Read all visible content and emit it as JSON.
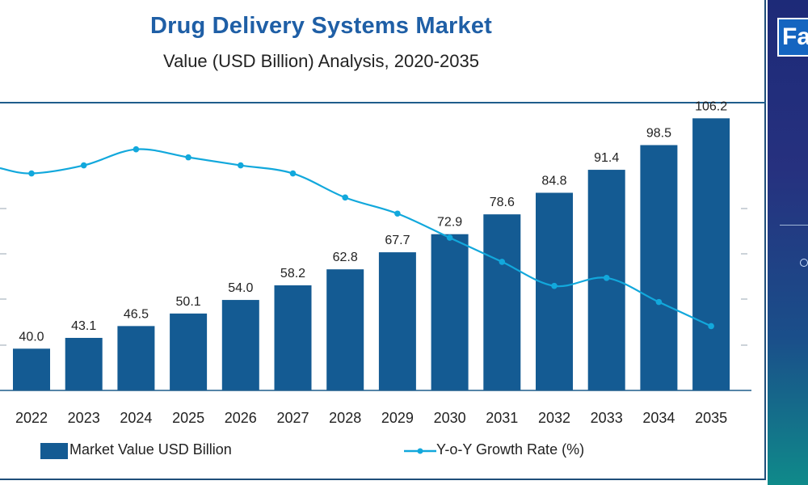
{
  "colors": {
    "bar": "#145b93",
    "line": "#12a8dc",
    "axis": "#1f5d8c",
    "gridtick": "#9aa7b3"
  },
  "chart_data": {
    "type": "bar",
    "title": "Drug Delivery Systems Market",
    "subtitle": "Value (USD Billion) Analysis, 2020-2035",
    "categories": [
      "2022",
      "2023",
      "2024",
      "2025",
      "2026",
      "2027",
      "2028",
      "2029",
      "2030",
      "2031",
      "2032",
      "2033",
      "2034",
      "2035"
    ],
    "series": [
      {
        "name": "Market Value USD Billion",
        "type": "bar",
        "values": [
          40.0,
          43.1,
          46.5,
          50.1,
          54.0,
          58.2,
          62.8,
          67.7,
          72.9,
          78.6,
          84.8,
          91.4,
          98.5,
          106.2
        ],
        "labels": [
          "40.0",
          "43.1",
          "46.5",
          "50.1",
          "54.0",
          "58.2",
          "62.8",
          "67.7",
          "72.9",
          "78.6",
          "84.8",
          "91.4",
          "98.5",
          "106.2"
        ]
      },
      {
        "name": "Y-o-Y Growth Rate (%)",
        "type": "line",
        "values": [
          7.7,
          7.8,
          8.0,
          7.9,
          7.8,
          7.7,
          7.4,
          7.2,
          6.9,
          6.6,
          6.3,
          6.4,
          6.1,
          5.8
        ]
      }
    ],
    "bar_ylim": [
      28,
      110
    ],
    "line_ylim": [
      5.0,
      8.55
    ],
    "legend_position": "bottom",
    "grid": false
  }
}
